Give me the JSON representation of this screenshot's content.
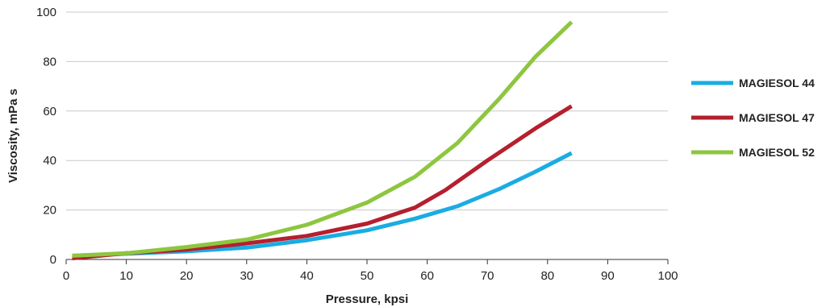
{
  "chart_data": {
    "type": "line",
    "title": "",
    "xlabel": "Pressure, kpsi",
    "ylabel": "Viscosity, mPa s",
    "xlim": [
      0,
      100
    ],
    "ylim": [
      0,
      100
    ],
    "xticks": [
      0,
      10,
      20,
      30,
      40,
      50,
      60,
      70,
      80,
      90,
      100
    ],
    "yticks": [
      0,
      20,
      40,
      60,
      80,
      100
    ],
    "grid": "horizontal",
    "legend_position": "right",
    "series": [
      {
        "name": "MAGIESOL 44",
        "color": "#1aace3",
        "points": [
          [
            1,
            1.5
          ],
          [
            10,
            2.3
          ],
          [
            20,
            3.3
          ],
          [
            30,
            4.8
          ],
          [
            40,
            7.8
          ],
          [
            50,
            11.8
          ],
          [
            58,
            16.5
          ],
          [
            65,
            21.5
          ],
          [
            72,
            28.5
          ],
          [
            78,
            35.5
          ],
          [
            84,
            43
          ]
        ]
      },
      {
        "name": "MAGIESOL 47",
        "color": "#b51f2e",
        "points": [
          [
            1,
            0.5
          ],
          [
            10,
            2.5
          ],
          [
            20,
            4.0
          ],
          [
            30,
            6.5
          ],
          [
            40,
            9.5
          ],
          [
            50,
            14.5
          ],
          [
            58,
            21
          ],
          [
            63,
            28
          ],
          [
            70,
            40
          ],
          [
            78,
            53
          ],
          [
            84,
            62
          ]
        ]
      },
      {
        "name": "MAGIESOL 52",
        "color": "#8dc63f",
        "points": [
          [
            1,
            1.5
          ],
          [
            10,
            2.5
          ],
          [
            20,
            5.0
          ],
          [
            30,
            8.0
          ],
          [
            40,
            14
          ],
          [
            50,
            23
          ],
          [
            58,
            33.5
          ],
          [
            65,
            47
          ],
          [
            72,
            65
          ],
          [
            78,
            82
          ],
          [
            84,
            96
          ]
        ]
      }
    ]
  }
}
